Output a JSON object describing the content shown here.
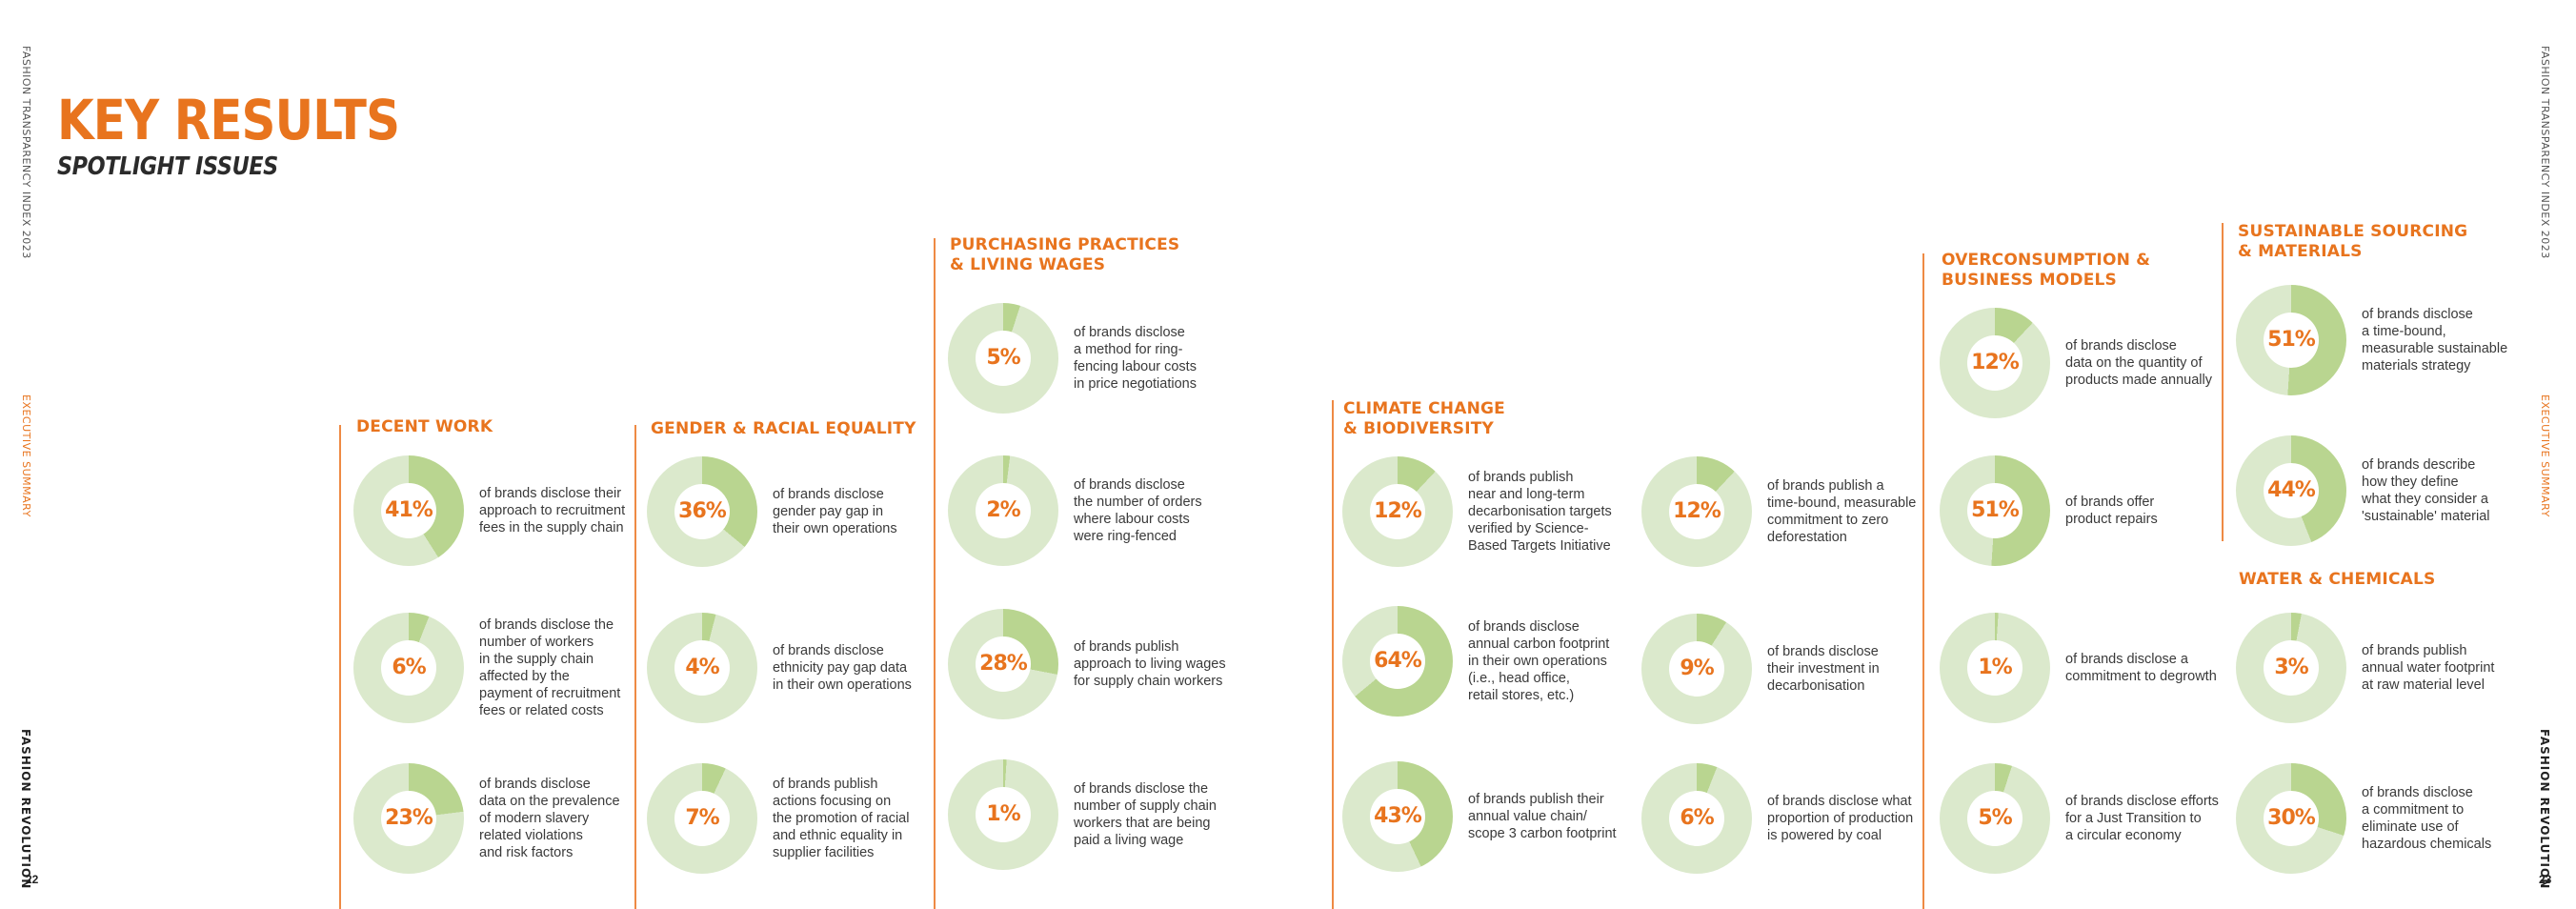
{
  "side_left": {
    "report_title": "FASHION TRANSPARENCY INDEX 2023",
    "section": "EXECUTIVE SUMMARY",
    "brand": "FASHION REVOLUTION",
    "page_number": "22"
  },
  "side_right": {
    "report_title": "FASHION TRANSPARENCY INDEX 2023",
    "section": "EXECUTIVE SUMMARY",
    "brand": "FASHION REVOLUTION",
    "page_number": "23"
  },
  "header": {
    "title": "KEY RESULTS",
    "subtitle": "SPOTLIGHT ISSUES"
  },
  "colors": {
    "accent": "#e8741e",
    "ring_light": "#dbe9cc",
    "ring_dark": "#b9d590"
  },
  "columns": [
    {
      "id": "decent-work",
      "title": "DECENT WORK",
      "items": [
        {
          "value": 41,
          "label": "41%",
          "text": "of brands disclose their\napproach to recruitment\nfees in the supply chain"
        },
        {
          "value": 6,
          "label": "6%",
          "text": "of brands disclose the\nnumber of workers\nin the supply chain\naffected by the\npayment of recruitment\nfees or related costs"
        },
        {
          "value": 23,
          "label": "23%",
          "text": "of brands disclose\ndata on the prevalence\nof modern slavery\nrelated violations\nand risk factors"
        }
      ]
    },
    {
      "id": "gender-racial-equality",
      "title": "GENDER & RACIAL EQUALITY",
      "items": [
        {
          "value": 36,
          "label": "36%",
          "text": "of brands disclose\ngender pay gap in\ntheir own operations"
        },
        {
          "value": 4,
          "label": "4%",
          "text": "of brands disclose\nethnicity pay gap data\nin their own operations"
        },
        {
          "value": 7,
          "label": "7%",
          "text": "of brands publish\nactions focusing on\nthe promotion of racial\nand ethnic equality in\nsupplier facilities"
        }
      ]
    },
    {
      "id": "purchasing-practices",
      "title": "PURCHASING PRACTICES\n& LIVING WAGES",
      "items": [
        {
          "value": 5,
          "label": "5%",
          "text": "of brands disclose\na method for ring-\nfencing labour costs\nin price negotiations"
        },
        {
          "value": 2,
          "label": "2%",
          "text": "of brands disclose\nthe number of orders\nwhere labour costs\nwere ring-fenced"
        },
        {
          "value": 28,
          "label": "28%",
          "text": "of brands publish\napproach to living wages\nfor supply chain workers"
        },
        {
          "value": 1,
          "label": "1%",
          "text": "of brands disclose the\nnumber of supply chain\nworkers that are being\npaid a living wage"
        }
      ]
    },
    {
      "id": "climate-change-a",
      "title": "CLIMATE CHANGE\n& BIODIVERSITY",
      "items": [
        {
          "value": 12,
          "label": "12%",
          "text": "of brands publish\nnear and long-term\ndecarbonisation targets\nverified by Science-\nBased Targets Initiative"
        },
        {
          "value": 64,
          "label": "64%",
          "text": "of brands disclose\nannual carbon footprint\nin their own operations\n(i.e., head office,\nretail stores, etc.)"
        },
        {
          "value": 43,
          "label": "43%",
          "text": "of brands publish their\nannual value chain/\nscope 3 carbon footprint"
        }
      ]
    },
    {
      "id": "climate-change-b",
      "title": "",
      "items": [
        {
          "value": 12,
          "label": "12%",
          "text": "of brands publish a\ntime-bound, measurable\ncommitment to zero\ndeforestation"
        },
        {
          "value": 9,
          "label": "9%",
          "text": "of brands disclose\ntheir investment in\ndecarbonisation"
        },
        {
          "value": 6,
          "label": "6%",
          "text": "of brands disclose what\nproportion of production\nis powered by coal"
        }
      ]
    },
    {
      "id": "overconsumption",
      "title": "OVERCONSUMPTION &\nBUSINESS MODELS",
      "items": [
        {
          "value": 12,
          "label": "12%",
          "text": "of brands disclose\ndata on the quantity of\nproducts made annually"
        },
        {
          "value": 51,
          "label": "51%",
          "text": "of brands offer\nproduct repairs"
        },
        {
          "value": 1,
          "label": "1%",
          "text": "of brands disclose a\ncommitment to degrowth"
        },
        {
          "value": 5,
          "label": "5%",
          "text": "of brands disclose efforts\nfor a Just Transition to\na circular economy"
        }
      ]
    },
    {
      "id": "sustainable-sourcing",
      "title": "SUSTAINABLE SOURCING\n& MATERIALS",
      "items": [
        {
          "value": 51,
          "label": "51%",
          "text": "of brands disclose\na time-bound,\nmeasurable sustainable\nmaterials strategy"
        },
        {
          "value": 44,
          "label": "44%",
          "text": "of brands describe\nhow they define\nwhat they consider a\n'sustainable' material"
        }
      ]
    },
    {
      "id": "water-chemicals",
      "title": "WATER & CHEMICALS",
      "items": [
        {
          "value": 3,
          "label": "3%",
          "text": "of brands publish\nannual water footprint\nat raw material level"
        },
        {
          "value": 30,
          "label": "30%",
          "text": "of brands disclose\na commitment to\neliminate use of\nhazardous chemicals"
        }
      ]
    }
  ]
}
